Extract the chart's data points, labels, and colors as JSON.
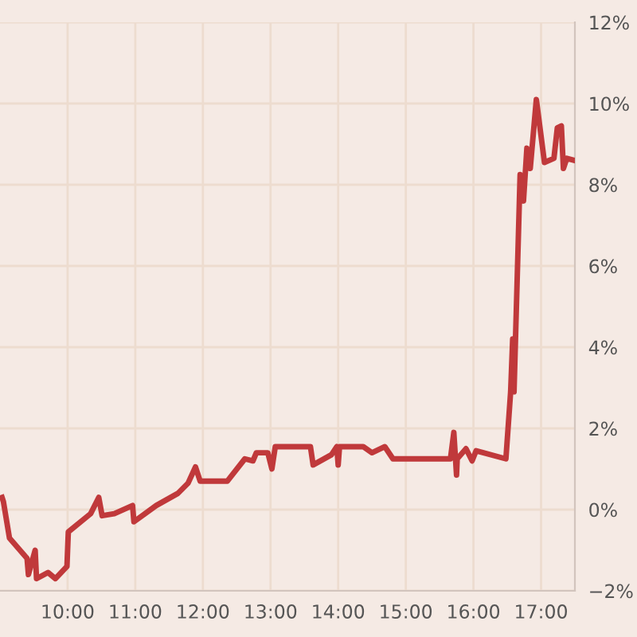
{
  "chart_data": {
    "type": "line",
    "x": [
      9.03,
      9.05,
      9.14,
      9.4,
      9.42,
      9.52,
      9.54,
      9.71,
      9.82,
      9.99,
      10.01,
      10.34,
      10.46,
      10.51,
      10.69,
      10.96,
      10.98,
      11.31,
      11.63,
      11.78,
      11.89,
      11.96,
      12.36,
      12.62,
      12.74,
      12.79,
      12.96,
      13.02,
      13.07,
      13.59,
      13.63,
      13.9,
      13.98,
      14.0,
      14.02,
      14.37,
      14.5,
      14.69,
      14.81,
      15.66,
      15.71,
      15.75,
      15.76,
      15.89,
      15.98,
      16.04,
      16.48,
      16.55,
      16.58,
      16.6,
      16.69,
      16.74,
      16.79,
      16.84,
      16.93,
      17.05,
      17.19,
      17.24,
      17.3,
      17.33,
      17.38,
      17.49
    ],
    "series": [
      {
        "color": "#c0393b",
        "values": [
          0.3,
          0.2,
          -0.7,
          -1.2,
          -1.6,
          -1.0,
          -1.7,
          -1.55,
          -1.7,
          -1.4,
          -0.55,
          -0.1,
          0.3,
          -0.15,
          -0.1,
          0.1,
          -0.3,
          0.1,
          0.4,
          0.65,
          1.05,
          0.7,
          0.7,
          1.25,
          1.2,
          1.4,
          1.4,
          1.0,
          1.55,
          1.55,
          1.1,
          1.35,
          1.55,
          1.1,
          1.55,
          1.55,
          1.4,
          1.55,
          1.25,
          1.25,
          1.9,
          0.85,
          1.25,
          1.5,
          1.2,
          1.45,
          1.25,
          2.9,
          4.2,
          2.9,
          8.25,
          7.6,
          8.9,
          8.4,
          10.1,
          8.55,
          8.65,
          9.4,
          9.45,
          8.4,
          8.65,
          8.6
        ]
      }
    ],
    "xlim": [
      9,
      17.5
    ],
    "xticks": [
      {
        "value": 10,
        "label": "10:00"
      },
      {
        "value": 11,
        "label": "11:00"
      },
      {
        "value": 12,
        "label": "12:00"
      },
      {
        "value": 13,
        "label": "13:00"
      },
      {
        "value": 14,
        "label": "14:00"
      },
      {
        "value": 15,
        "label": "15:00"
      },
      {
        "value": 16,
        "label": "16:00"
      },
      {
        "value": 17,
        "label": "17:00"
      }
    ],
    "ylim": [
      -2,
      12
    ],
    "yticks": [
      {
        "value": -2,
        "label": "−2%"
      },
      {
        "value": 0,
        "label": "0%"
      },
      {
        "value": 2,
        "label": "2%"
      },
      {
        "value": 4,
        "label": "4%"
      },
      {
        "value": 6,
        "label": "6%"
      },
      {
        "value": 8,
        "label": "8%"
      },
      {
        "value": 10,
        "label": "10%"
      },
      {
        "value": 12,
        "label": "12%"
      }
    ],
    "grid": true,
    "marker": "none",
    "line_style": "solid"
  }
}
